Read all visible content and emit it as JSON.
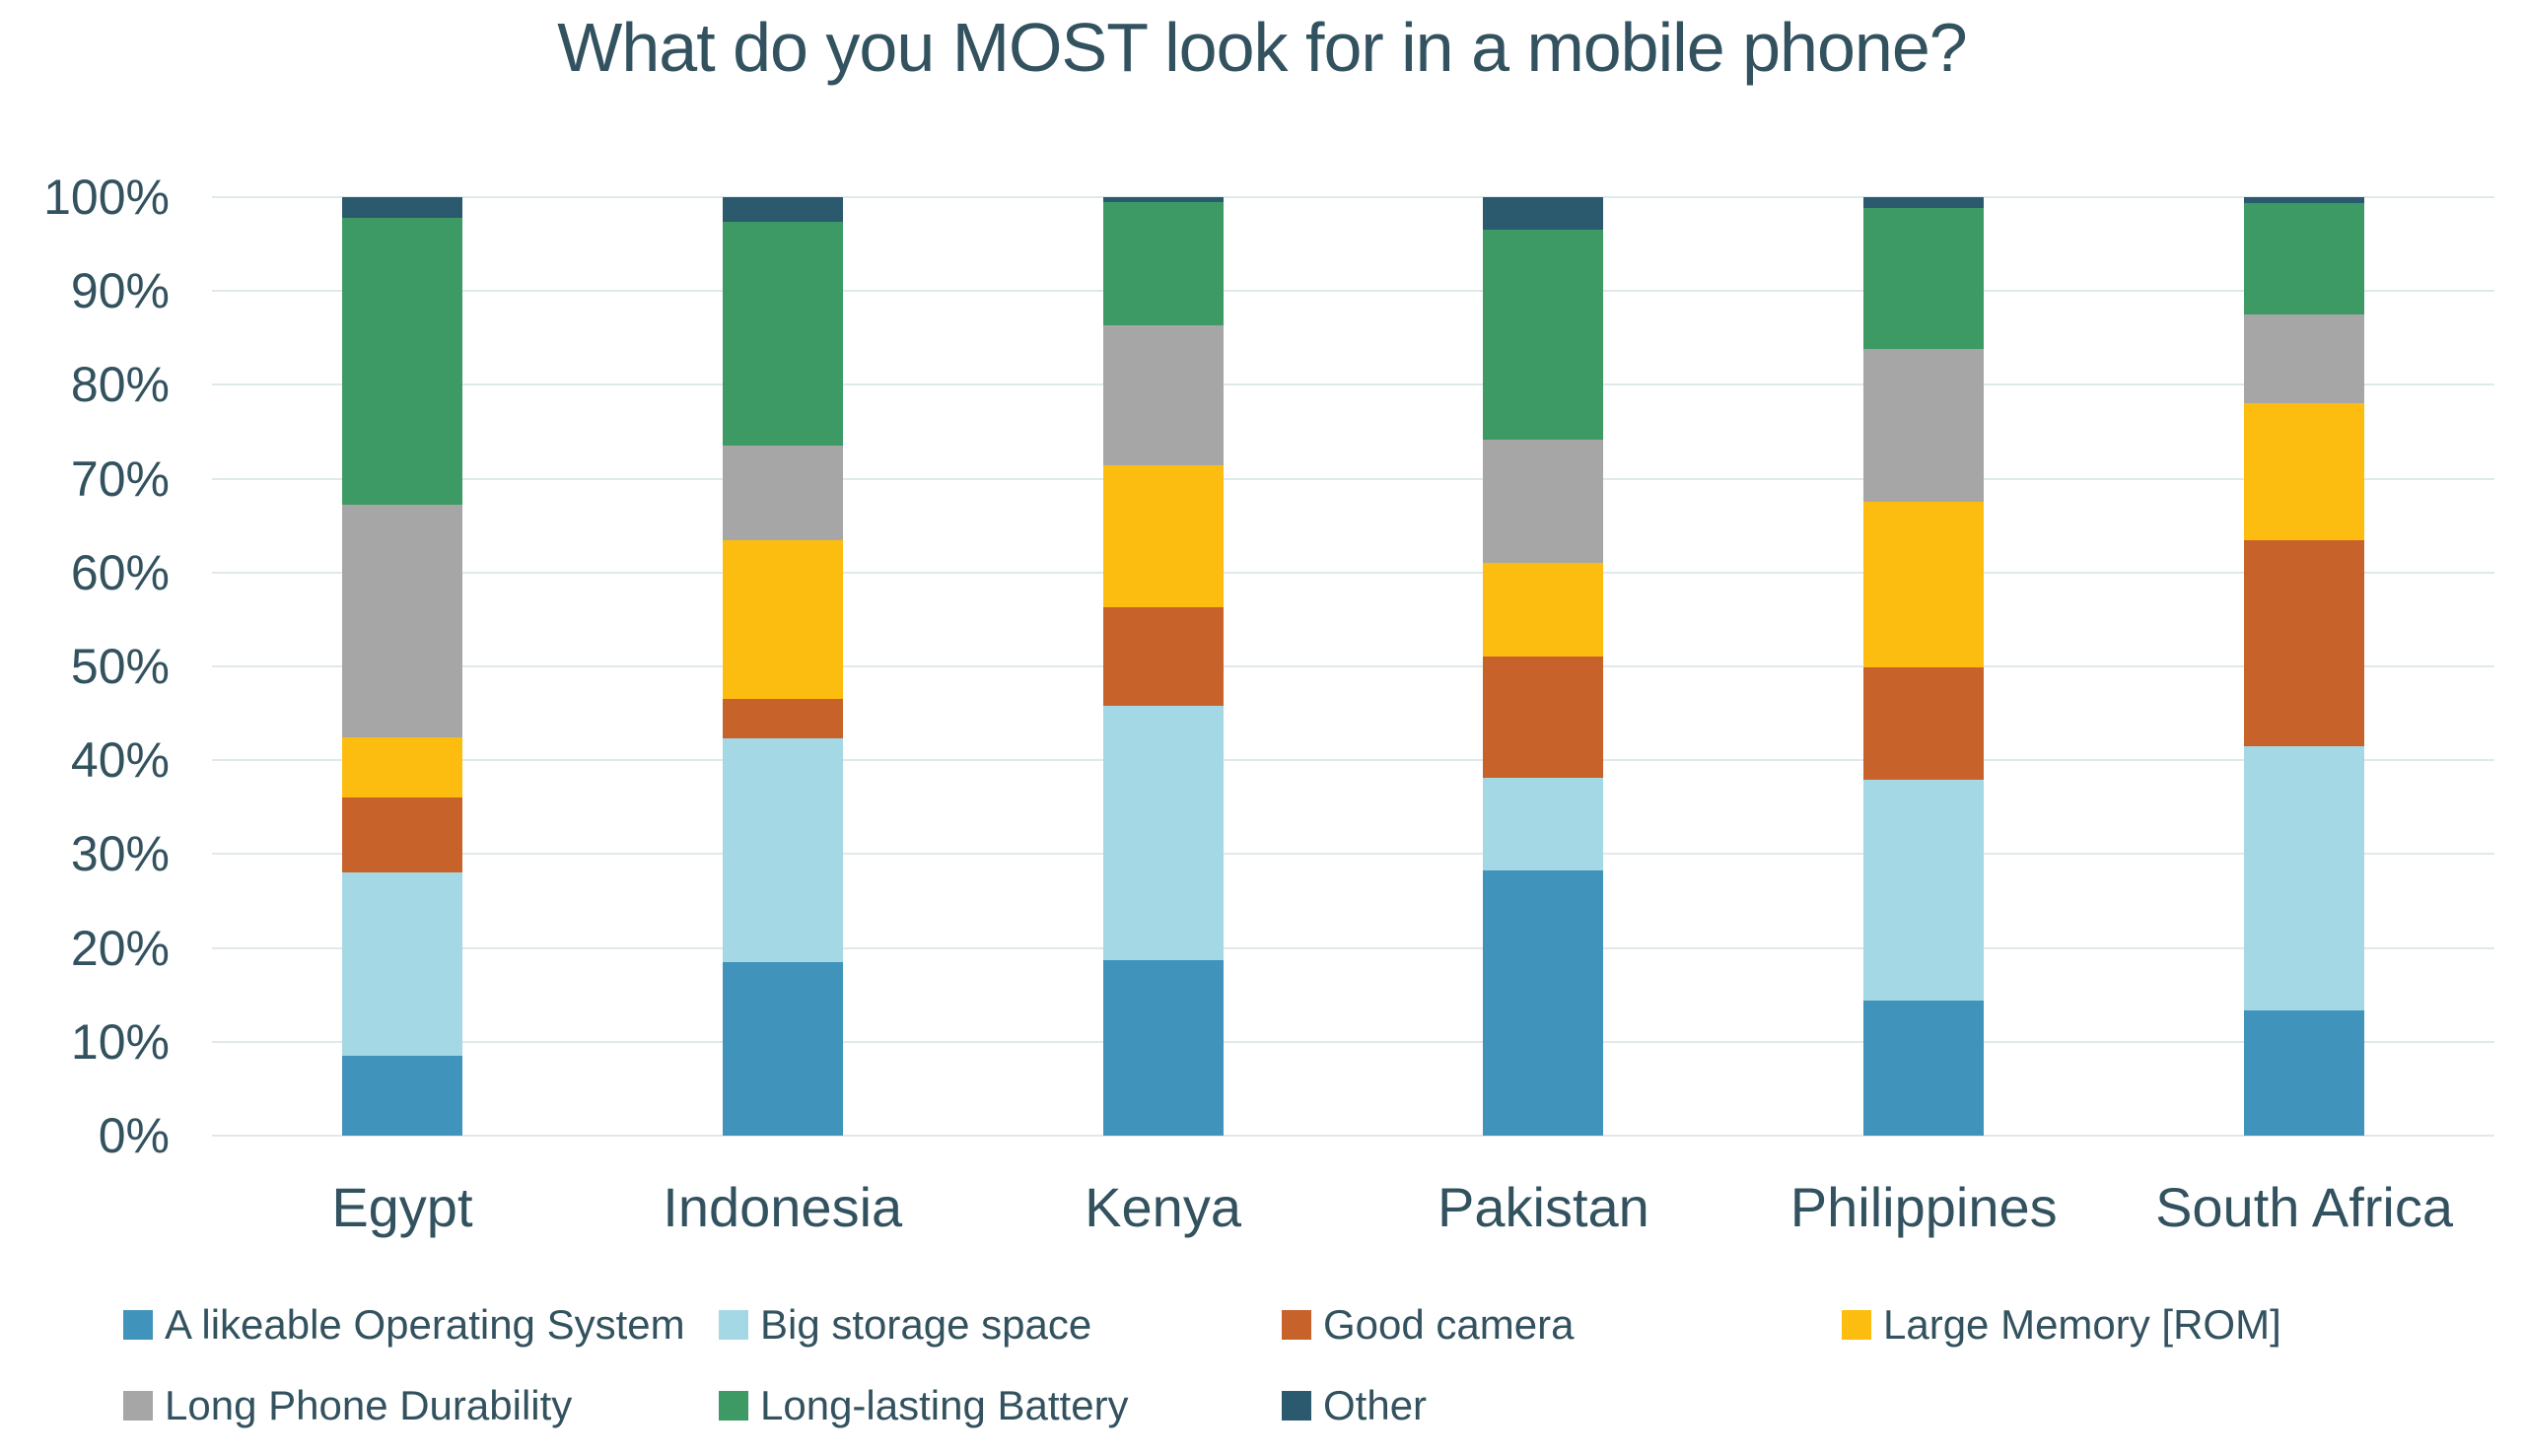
{
  "title": "What do you MOST look for in a mobile phone?",
  "colors": {
    "text": "#33525F",
    "gridline": "#DFE9EC",
    "background": "#FFFFFF"
  },
  "chart_data": {
    "type": "bar",
    "subtype": "stacked-100-percent",
    "title": "What do you MOST look for in a mobile phone?",
    "categories": [
      "Egypt",
      "Indonesia",
      "Kenya",
      "Pakistan",
      "Philippines",
      "South Africa"
    ],
    "series": [
      {
        "name": "A likeable Operating System",
        "color": "#4093BA",
        "values": [
          8.5,
          18.5,
          18.7,
          28.3,
          14.4,
          13.3
        ]
      },
      {
        "name": "Big storage space",
        "color": "#A5D8E5",
        "values": [
          19.5,
          23.8,
          27.1,
          9.8,
          23.5,
          28.2
        ]
      },
      {
        "name": "Good camera",
        "color": "#C8622B",
        "values": [
          8.0,
          4.2,
          10.5,
          13.0,
          12.0,
          22.0
        ]
      },
      {
        "name": "Large Memory [ROM]",
        "color": "#FDBD10",
        "values": [
          6.4,
          17.0,
          15.1,
          9.9,
          17.6,
          14.6
        ]
      },
      {
        "name": "Long Phone Durability",
        "color": "#A6A6A6",
        "values": [
          24.8,
          10.0,
          14.9,
          13.2,
          16.3,
          9.4
        ]
      },
      {
        "name": "Long-lasting Battery",
        "color": "#3D9A64",
        "values": [
          30.6,
          23.9,
          13.2,
          22.3,
          15.1,
          11.9
        ]
      },
      {
        "name": "Other",
        "color": "#2B5A6E",
        "values": [
          2.2,
          2.6,
          0.5,
          3.5,
          1.1,
          0.6
        ]
      }
    ],
    "y_ticks": [
      "0%",
      "10%",
      "20%",
      "30%",
      "40%",
      "50%",
      "60%",
      "70%",
      "80%",
      "90%",
      "100%"
    ],
    "ylim": [
      0,
      100
    ],
    "grid": true,
    "legend_position": "bottom",
    "legend_rows": [
      [
        0,
        1,
        2,
        3
      ],
      [
        4,
        5,
        6
      ]
    ]
  }
}
